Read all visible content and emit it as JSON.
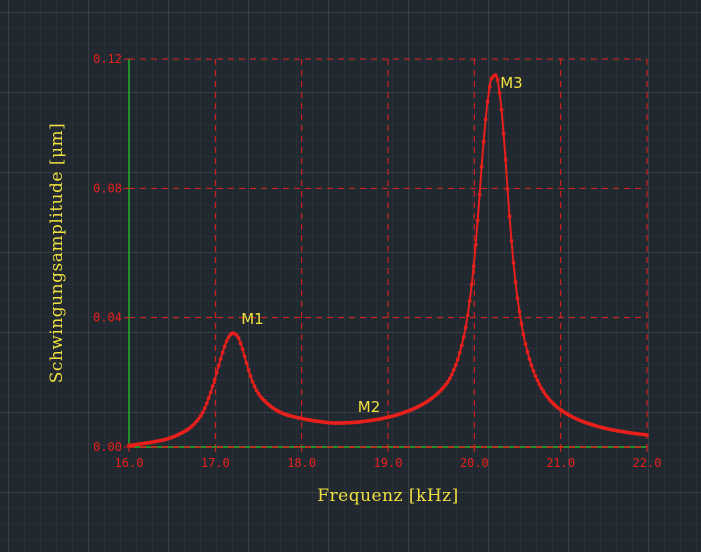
{
  "chart_data": {
    "type": "line",
    "title": "",
    "xlabel": "Frequenz [kHz]",
    "ylabel": "Schwingungsamplitude [μm]",
    "xlim": [
      16.0,
      22.0
    ],
    "ylim": [
      0.0,
      0.12
    ],
    "xticks": [
      "16.0",
      "17.0",
      "18.0",
      "19.0",
      "20.0",
      "21.0",
      "22.0"
    ],
    "yticks": [
      "0.00",
      "0.04",
      "0.08",
      "0.12"
    ],
    "xtick_values": [
      16,
      17,
      18,
      19,
      20,
      21,
      22
    ],
    "ytick_values": [
      0,
      0.04,
      0.08,
      0.12
    ],
    "grid": true,
    "series": [
      {
        "color": "#e8201c",
        "x": [
          16.0,
          16.2,
          16.4,
          16.5,
          16.6,
          16.7,
          16.8,
          16.85,
          16.9,
          16.95,
          17.0,
          17.05,
          17.1,
          17.15,
          17.2,
          17.25,
          17.3,
          17.35,
          17.4,
          17.45,
          17.5,
          17.6,
          17.7,
          17.8,
          18.0,
          18.2,
          18.4,
          18.6,
          18.8,
          19.0,
          19.2,
          19.4,
          19.6,
          19.7,
          19.8,
          19.9,
          19.95,
          20.0,
          20.05,
          20.1,
          20.15,
          20.2,
          20.25,
          20.3,
          20.35,
          20.4,
          20.45,
          20.5,
          20.6,
          20.7,
          20.8,
          20.9,
          21.0,
          21.2,
          21.4,
          21.6,
          21.8,
          22.0
        ],
        "y": [
          0.0005,
          0.0012,
          0.0022,
          0.003,
          0.0042,
          0.0058,
          0.0085,
          0.0105,
          0.0135,
          0.0172,
          0.0215,
          0.0262,
          0.0305,
          0.0338,
          0.0352,
          0.0345,
          0.0315,
          0.027,
          0.0225,
          0.019,
          0.0165,
          0.0135,
          0.0115,
          0.0102,
          0.0088,
          0.0079,
          0.0074,
          0.0076,
          0.0082,
          0.0092,
          0.0108,
          0.0132,
          0.0172,
          0.0205,
          0.0265,
          0.037,
          0.046,
          0.058,
          0.074,
          0.092,
          0.106,
          0.114,
          0.115,
          0.108,
          0.093,
          0.074,
          0.058,
          0.046,
          0.031,
          0.0225,
          0.0172,
          0.0138,
          0.0115,
          0.0085,
          0.0066,
          0.0053,
          0.0044,
          0.0037
        ]
      }
    ],
    "annotations": [
      {
        "text": "M1",
        "x": 17.3,
        "y": 0.038
      },
      {
        "text": "M2",
        "x": 18.65,
        "y": 0.0108
      },
      {
        "text": "M3",
        "x": 20.3,
        "y": 0.111
      }
    ]
  }
}
